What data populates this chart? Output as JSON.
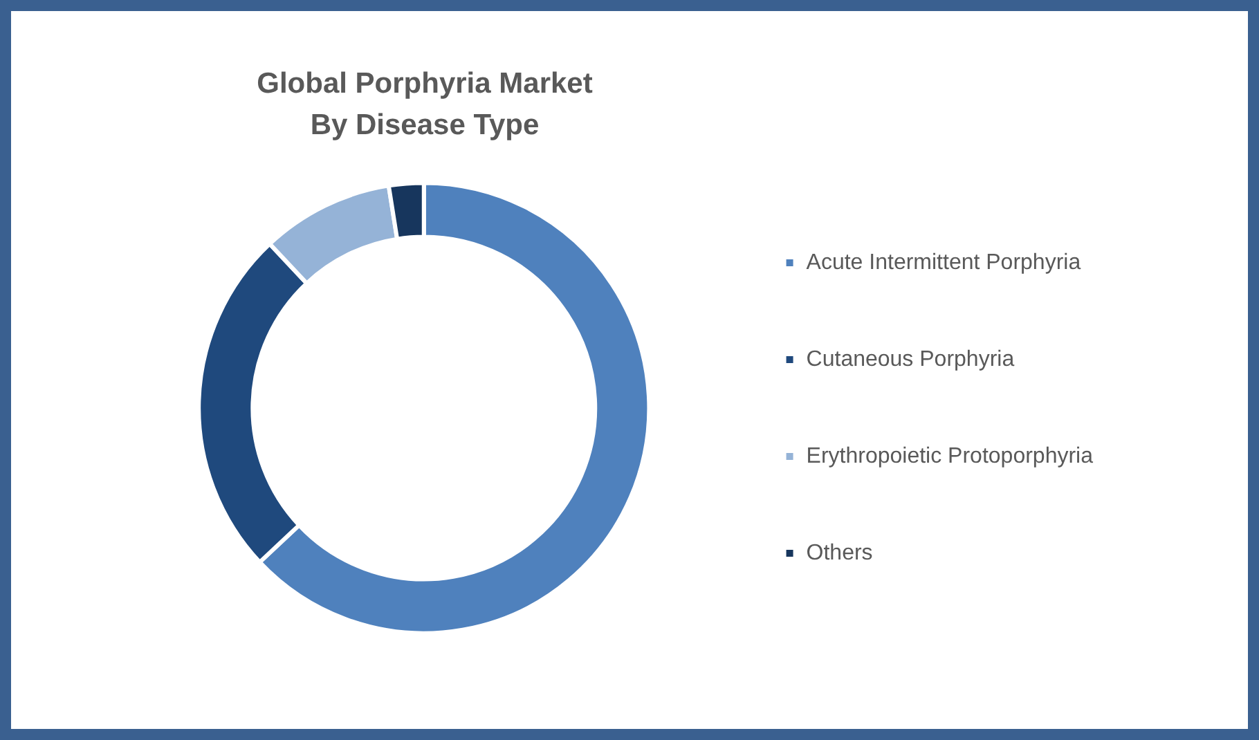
{
  "chart_data": {
    "type": "donut",
    "title": "Global Porphyria Market\nBy Disease Type",
    "categories": [
      "Acute Intermittent Porphyria",
      "Cutaneous Porphyria",
      "Erythropoietic Protoporphyria",
      "Others"
    ],
    "values": [
      63,
      25,
      9.5,
      2.5
    ],
    "colors": [
      "#4f81bd",
      "#1f497d",
      "#95b3d7",
      "#17365d"
    ],
    "legend": "right"
  }
}
